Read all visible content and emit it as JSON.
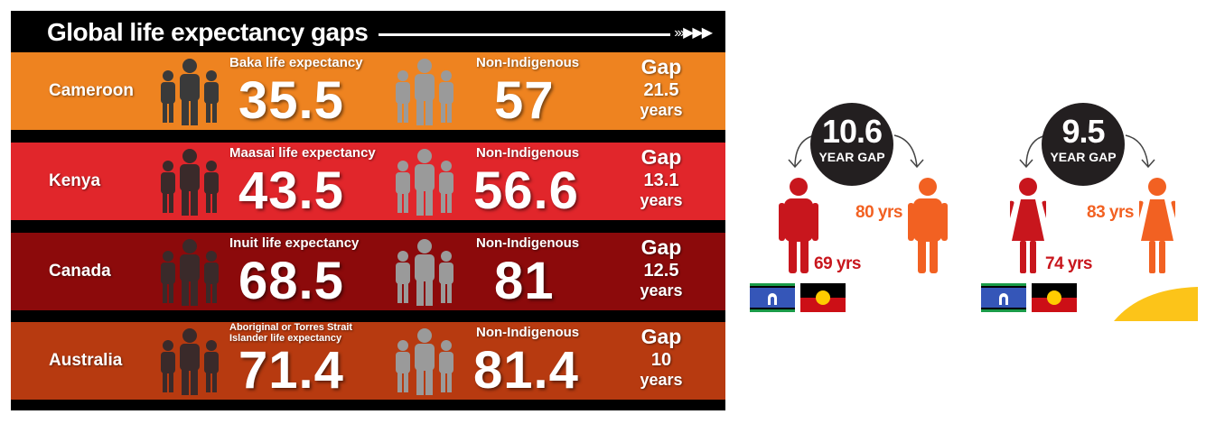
{
  "title": "Global life expectancy gaps",
  "rows": [
    {
      "country": "Cameroon",
      "indigenous_label": "Baka life expectancy",
      "indigenous_value": "35.5",
      "non_label": "Non-Indigenous",
      "non_value": "57",
      "gap_label": "Gap",
      "gap_value": "21.5",
      "gap_unit": "years",
      "color": "#ee8320",
      "icon_color": "#3a3a3a"
    },
    {
      "country": "Kenya",
      "indigenous_label": "Maasai life expectancy",
      "indigenous_value": "43.5",
      "non_label": "Non-Indigenous",
      "non_value": "56.6",
      "gap_label": "Gap",
      "gap_value": "13.1",
      "gap_unit": "years",
      "color": "#e1262b",
      "icon_color": "#3a2a2a"
    },
    {
      "country": "Canada",
      "indigenous_label": "Inuit life expectancy",
      "indigenous_value": "68.5",
      "non_label": "Non-Indigenous",
      "non_value": "81",
      "gap_label": "Gap",
      "gap_value": "12.5",
      "gap_unit": "years",
      "color": "#8c0a0b",
      "icon_color": "#3a2a2a"
    },
    {
      "country": "Australia",
      "indigenous_label": "Aboriginal or Torres Strait Islander life expectancy",
      "indigenous_value": "71.4",
      "non_label": "Non-Indigenous",
      "non_value": "81.4",
      "gap_label": "Gap",
      "gap_value": "10",
      "gap_unit": "years",
      "color": "#b73a10",
      "icon_color": "#3a2a2a"
    }
  ],
  "australia_gaps": [
    {
      "gap_value": "10.6",
      "gap_caption": "YEAR GAP",
      "indigenous": "69 yrs",
      "non_indigenous": "80 yrs",
      "figure": "male"
    },
    {
      "gap_value": "9.5",
      "gap_caption": "YEAR GAP",
      "indigenous": "74 yrs",
      "non_indigenous": "83 yrs",
      "figure": "female"
    }
  ],
  "colors": {
    "indigenous": "#c8161d",
    "non_indigenous": "#f26122",
    "circle": "#231f20",
    "accent": "#fcc419"
  }
}
